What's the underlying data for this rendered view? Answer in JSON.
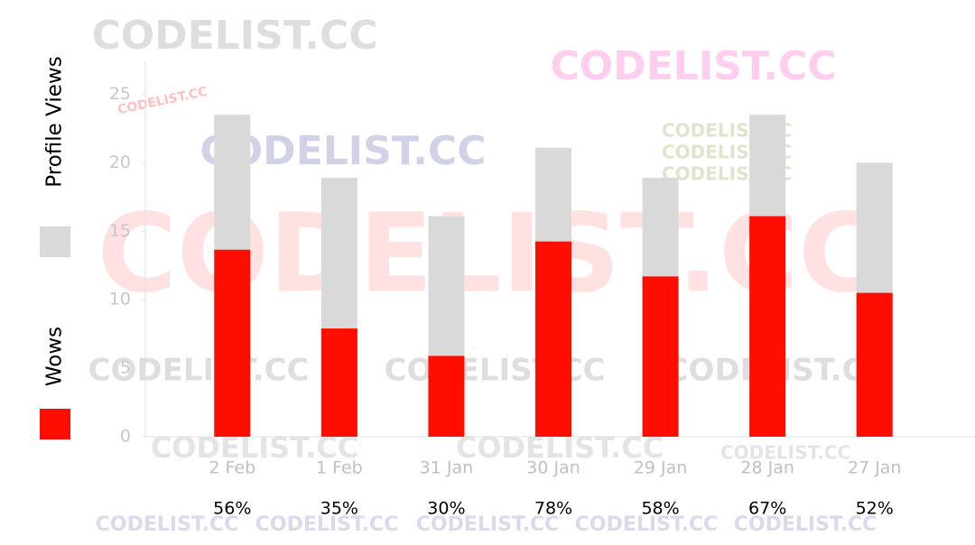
{
  "chart_data": {
    "type": "bar",
    "categories": [
      "2 Feb",
      "1 Feb",
      "31 Jan",
      "30 Jan",
      "29 Jan",
      "28 Jan",
      "27 Jan"
    ],
    "series": [
      {
        "name": "Profile Views",
        "color": "#d9d9d9",
        "values": [
          23.5,
          18.9,
          16.1,
          21.1,
          18.9,
          23.5,
          20.0
        ]
      },
      {
        "name": "Wows",
        "color": "#ff0d00",
        "values": [
          13.65,
          7.9,
          5.9,
          14.25,
          11.7,
          16.1,
          10.5
        ]
      }
    ],
    "percentages": [
      "56%",
      "35%",
      "30%",
      "78%",
      "58%",
      "67%",
      "52%"
    ],
    "ylim": [
      0,
      27.4
    ],
    "yticks": [
      0,
      5,
      10,
      15,
      20,
      25
    ],
    "watermark": "CODELIST.CC"
  }
}
